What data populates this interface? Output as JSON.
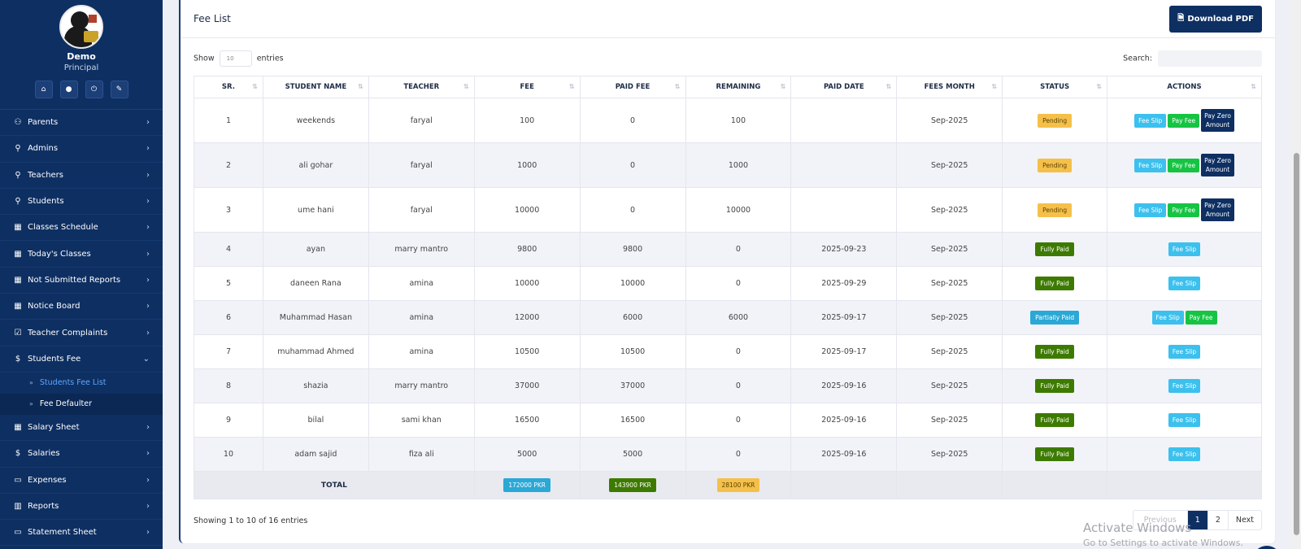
{
  "sidebar": {
    "user_name": "Demo",
    "user_role": "Principal",
    "quick_icons": [
      "home-icon",
      "user-icon",
      "power-icon",
      "edit-icon"
    ],
    "items": [
      {
        "label": "Parents",
        "icon": "users-icon"
      },
      {
        "label": "Admins",
        "icon": "user-icon"
      },
      {
        "label": "Teachers",
        "icon": "user-icon"
      },
      {
        "label": "Students",
        "icon": "user-icon"
      },
      {
        "label": "Classes Schedule",
        "icon": "calendar-icon"
      },
      {
        "label": "Today's Classes",
        "icon": "calendar-icon"
      },
      {
        "label": "Not Submitted Reports",
        "icon": "calendar-icon"
      },
      {
        "label": "Notice Board",
        "icon": "calendar-icon"
      },
      {
        "label": "Teacher Complaints",
        "icon": "checklist-icon"
      },
      {
        "label": "Students Fee",
        "icon": "dollar-icon"
      }
    ],
    "sub_items": [
      {
        "label": "Students Fee List"
      },
      {
        "label": "Fee Defaulter"
      }
    ],
    "items_after": [
      {
        "label": "Salary Sheet",
        "icon": "calendar-icon"
      },
      {
        "label": "Salaries",
        "icon": "dollar-icon"
      },
      {
        "label": "Expenses",
        "icon": "money-icon"
      },
      {
        "label": "Reports",
        "icon": "bar-chart-icon"
      },
      {
        "label": "Statement Sheet",
        "icon": "money-icon"
      }
    ]
  },
  "card": {
    "title": "Fee List",
    "download_label": "Download PDF"
  },
  "toolbar": {
    "show_label": "Show",
    "entries_value": "10",
    "entries_label": "entries",
    "search_label": "Search:"
  },
  "table": {
    "headers": [
      "SR.",
      "STUDENT NAME",
      "TEACHER",
      "FEE",
      "PAID FEE",
      "REMAINING",
      "PAID DATE",
      "FEES MONTH",
      "STATUS",
      "ACTIONS"
    ],
    "rows": [
      {
        "sr": "1",
        "name": "weekends",
        "teacher": "faryal",
        "fee": "100",
        "paid": "0",
        "remaining": "100",
        "date": "",
        "month": "Sep-2025",
        "status": "Pending"
      },
      {
        "sr": "2",
        "name": "ali gohar",
        "teacher": "faryal",
        "fee": "1000",
        "paid": "0",
        "remaining": "1000",
        "date": "",
        "month": "Sep-2025",
        "status": "Pending"
      },
      {
        "sr": "3",
        "name": "ume hani",
        "teacher": "faryal",
        "fee": "10000",
        "paid": "0",
        "remaining": "10000",
        "date": "",
        "month": "Sep-2025",
        "status": "Pending"
      },
      {
        "sr": "4",
        "name": "ayan",
        "teacher": "marry mantro",
        "fee": "9800",
        "paid": "9800",
        "remaining": "0",
        "date": "2025-09-23",
        "month": "Sep-2025",
        "status": "Fully Paid"
      },
      {
        "sr": "5",
        "name": "daneen Rana",
        "teacher": "amina",
        "fee": "10000",
        "paid": "10000",
        "remaining": "0",
        "date": "2025-09-29",
        "month": "Sep-2025",
        "status": "Fully Paid"
      },
      {
        "sr": "6",
        "name": "Muhammad Hasan",
        "teacher": "amina",
        "fee": "12000",
        "paid": "6000",
        "remaining": "6000",
        "date": "2025-09-17",
        "month": "Sep-2025",
        "status": "Partially Paid"
      },
      {
        "sr": "7",
        "name": "muhammad Ahmed",
        "teacher": "amina",
        "fee": "10500",
        "paid": "10500",
        "remaining": "0",
        "date": "2025-09-17",
        "month": "Sep-2025",
        "status": "Fully Paid"
      },
      {
        "sr": "8",
        "name": "shazia",
        "teacher": "marry mantro",
        "fee": "37000",
        "paid": "37000",
        "remaining": "0",
        "date": "2025-09-16",
        "month": "Sep-2025",
        "status": "Fully Paid"
      },
      {
        "sr": "9",
        "name": "bilal",
        "teacher": "sami khan",
        "fee": "16500",
        "paid": "16500",
        "remaining": "0",
        "date": "2025-09-16",
        "month": "Sep-2025",
        "status": "Fully Paid"
      },
      {
        "sr": "10",
        "name": "adam sajid",
        "teacher": "fiza ali",
        "fee": "5000",
        "paid": "5000",
        "remaining": "0",
        "date": "2025-09-16",
        "month": "Sep-2025",
        "status": "Fully Paid"
      }
    ],
    "actions": {
      "slip": "Fee Slip",
      "pay": "Pay Fee",
      "zero_line1": "Pay Zero",
      "zero_line2": "Amount"
    },
    "total": {
      "label": "TOTAL",
      "fee": "172000 PKR",
      "paid": "143900 PKR",
      "remaining": "28100 PKR"
    }
  },
  "footer": {
    "info": "Showing 1 to 10 of 16 entries",
    "previous": "Previous",
    "pages": [
      "1",
      "2"
    ],
    "next": "Next"
  },
  "watermark": {
    "line1": "Activate Windows",
    "line2": "Go to Settings to activate Windows."
  },
  "colors": {
    "sidebar_bg": "#0e2f62",
    "pending": "#f5c04a",
    "fully_paid": "#3d7a00",
    "partial": "#2aa8d6",
    "fee_slip": "#3cc0ee",
    "pay_fee": "#16c443"
  }
}
